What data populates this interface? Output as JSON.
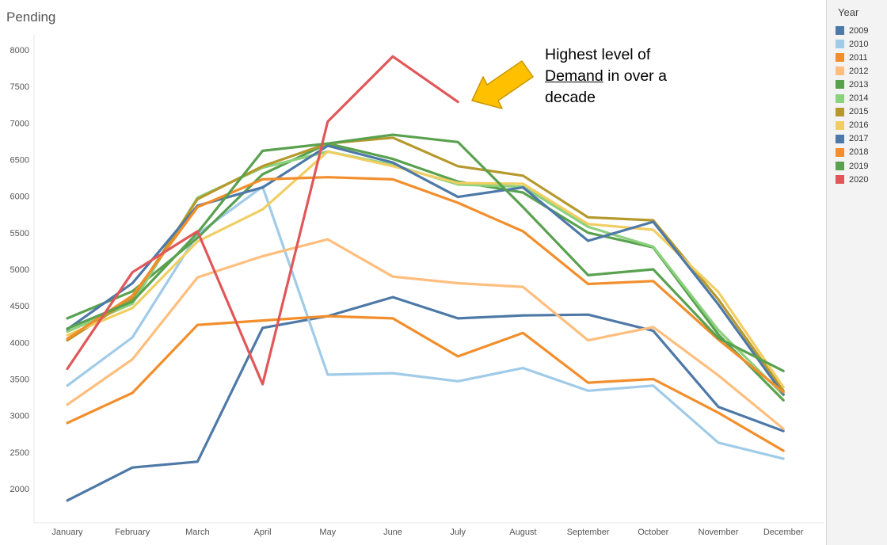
{
  "chart_data": {
    "type": "line",
    "title": "",
    "ylabel": "Pending",
    "xlabel": "",
    "categories": [
      "January",
      "February",
      "March",
      "April",
      "May",
      "June",
      "July",
      "August",
      "September",
      "October",
      "November",
      "December"
    ],
    "ylim": [
      1500,
      8200
    ],
    "yticks": [
      2000,
      2500,
      3000,
      3500,
      4000,
      4500,
      5000,
      5500,
      6000,
      6500,
      7000,
      7500,
      8000
    ],
    "grid": false,
    "legend_title": "Year",
    "legend_position": "right",
    "series": [
      {
        "name": "2009",
        "color": "#4e79a7",
        "values": [
          1840,
          2290,
          2370,
          4200,
          4360,
          4620,
          4330,
          4370,
          4380,
          4160,
          3120,
          2790
        ]
      },
      {
        "name": "2010",
        "color": "#a0cbe8",
        "values": [
          3410,
          4070,
          5480,
          6130,
          3560,
          3580,
          3470,
          3650,
          3340,
          3410,
          2630,
          2410
        ]
      },
      {
        "name": "2011",
        "color": "#f28e2b",
        "values": [
          2900,
          3310,
          4240,
          4300,
          4360,
          4330,
          3810,
          4130,
          3450,
          3500,
          3040,
          2520
        ]
      },
      {
        "name": "2012",
        "color": "#ffbe7d",
        "values": [
          3150,
          3770,
          4890,
          5180,
          5410,
          4900,
          4810,
          4760,
          4030,
          4210,
          3550,
          2820
        ]
      },
      {
        "name": "2013",
        "color": "#59a14f",
        "values": [
          4330,
          4700,
          5430,
          6300,
          6720,
          6510,
          6200,
          6050,
          5500,
          5300,
          4110,
          3210
        ]
      },
      {
        "name": "2014",
        "color": "#8cd17d",
        "values": [
          4150,
          4530,
          5980,
          6390,
          6610,
          6430,
          6160,
          6130,
          5580,
          5310,
          4170,
          3280
        ]
      },
      {
        "name": "2015",
        "color": "#b6992d",
        "values": [
          4030,
          4600,
          5960,
          6410,
          6720,
          6800,
          6410,
          6280,
          5710,
          5670,
          4590,
          3340
        ]
      },
      {
        "name": "2016",
        "color": "#f1ce63",
        "values": [
          4100,
          4470,
          5380,
          5820,
          6610,
          6410,
          6180,
          6170,
          5620,
          5540,
          4690,
          3390
        ]
      },
      {
        "name": "2017",
        "color": "#4e79a7",
        "values": [
          4180,
          4810,
          5870,
          6120,
          6690,
          6460,
          5990,
          6120,
          5390,
          5650,
          4520,
          3290
        ]
      },
      {
        "name": "2018",
        "color": "#f28e2b",
        "values": [
          4050,
          4640,
          5850,
          6230,
          6260,
          6230,
          5910,
          5520,
          4800,
          4840,
          4040,
          3320
        ]
      },
      {
        "name": "2019",
        "color": "#59a14f",
        "values": [
          4190,
          4560,
          5500,
          6620,
          6720,
          6840,
          6740,
          5850,
          4920,
          5000,
          4060,
          3610
        ]
      },
      {
        "name": "2020",
        "color": "#e15759",
        "values": [
          3640,
          4960,
          5520,
          3430,
          7020,
          7910,
          7290,
          null,
          null,
          null,
          null,
          null
        ]
      }
    ],
    "annotation": {
      "line1": "Highest level of",
      "line2_underlined": "Demand",
      "line2_rest": " in over a",
      "line3": "decade",
      "arrow_color": "#ffc000"
    }
  }
}
